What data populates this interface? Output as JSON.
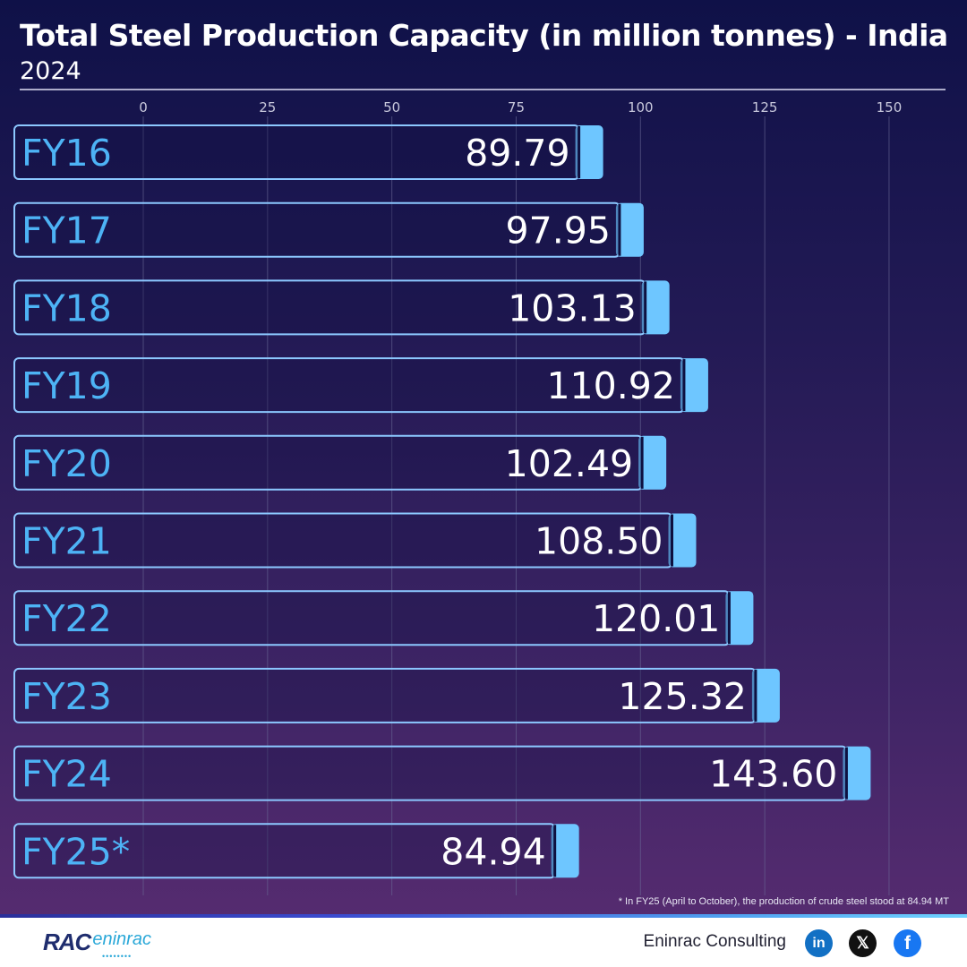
{
  "header": {
    "title": "Total Steel Production Capacity (in million tonnes) - India",
    "subtitle": "2024"
  },
  "chart_data": {
    "type": "bar",
    "orientation": "horizontal",
    "title": "Total Steel Production Capacity (in million tonnes) - India",
    "subtitle": "2024",
    "categories": [
      "FY16",
      "FY17",
      "FY18",
      "FY19",
      "FY20",
      "FY21",
      "FY22",
      "FY23",
      "FY24",
      "FY25*"
    ],
    "values": [
      89.79,
      97.95,
      103.13,
      110.92,
      102.49,
      108.5,
      120.01,
      125.32,
      143.6,
      84.94
    ],
    "value_labels": [
      "89.79",
      "97.95",
      "103.13",
      "110.92",
      "102.49",
      "108.50",
      "120.01",
      "125.32",
      "143.60",
      "84.94"
    ],
    "xticks": [
      0,
      25,
      50,
      75,
      100,
      125,
      150
    ],
    "xlim": [
      0,
      150
    ],
    "grid": true,
    "xlabel": "",
    "ylabel": "",
    "colors": {
      "bar_border": "#8cc8ff",
      "bar_cap": "#6ec6ff",
      "category_text": "#4db3f5",
      "value_text": "#ffffff",
      "grid": "#6a6a96"
    }
  },
  "footnote": "* In FY25 (April to October), the production of crude steel stood at 84.94 MT",
  "footer": {
    "logo_rac": "RAC",
    "logo_eninrac": "eninrac",
    "company": "Eninrac Consulting",
    "social": [
      {
        "icon": "linkedin-icon",
        "glyph": "in"
      },
      {
        "icon": "x-twitter-icon",
        "glyph": "𝕏"
      },
      {
        "icon": "facebook-icon",
        "glyph": "f"
      }
    ]
  }
}
